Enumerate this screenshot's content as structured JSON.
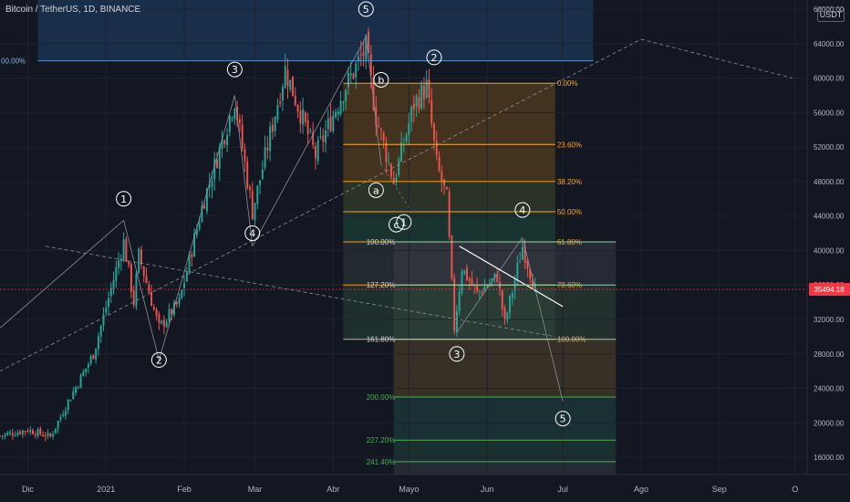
{
  "header": {
    "title": "Bitcoin / TetherUS, 1D, BINANCE",
    "currency": "USDT"
  },
  "colors": {
    "background": "#131722",
    "up": "#26a69a",
    "down": "#ef5350",
    "price_line": "#f23645",
    "fib_orange": "#f5a623",
    "fib_green": "#4caf50",
    "text": "#d1d4dc",
    "axis_text": "#b2b5be"
  },
  "chart_data": {
    "type": "candlestick",
    "symbol": "Bitcoin / TetherUS",
    "interval": "1D",
    "exchange": "BINANCE",
    "ylim": [
      14000,
      68000
    ],
    "y_ticks": [
      16000,
      20000,
      24000,
      28000,
      32000,
      36000,
      40000,
      44000,
      48000,
      52000,
      56000,
      60000,
      64000,
      68000
    ],
    "y_tick_labels": [
      "16000.00",
      "20000.00",
      "24000.00",
      "28000.00",
      "32000.00",
      "36000.00",
      "40000.00",
      "44000.00",
      "48000.00",
      "52000.00",
      "56000.00",
      "60000.00",
      "64000.00",
      "68000.00"
    ],
    "x_ticks": [
      {
        "label": "Dic",
        "date": "2020-12-01"
      },
      {
        "label": "2021",
        "date": "2021-01-01"
      },
      {
        "label": "Feb",
        "date": "2021-02-01"
      },
      {
        "label": "Mar",
        "date": "2021-03-01"
      },
      {
        "label": "Abr",
        "date": "2021-04-01"
      },
      {
        "label": "Mayo",
        "date": "2021-05-01"
      },
      {
        "label": "Jun",
        "date": "2021-06-01"
      },
      {
        "label": "Jul",
        "date": "2021-07-01"
      },
      {
        "label": "Ago",
        "date": "2021-08-01"
      },
      {
        "label": "Sep",
        "date": "2021-09-01"
      },
      {
        "label": "O",
        "date": "2021-10-01"
      }
    ],
    "last_price": {
      "value": 35494.18,
      "label": "35494.18"
    },
    "price_path": [
      [
        "2020-11-20",
        18500
      ],
      [
        "2020-12-01",
        19200
      ],
      [
        "2020-12-10",
        18400
      ],
      [
        "2020-12-17",
        22500
      ],
      [
        "2020-12-27",
        28000
      ],
      [
        "2021-01-08",
        41000
      ],
      [
        "2021-01-12",
        34000
      ],
      [
        "2021-01-14",
        39500
      ],
      [
        "2021-01-22",
        31000
      ],
      [
        "2021-01-30",
        34000
      ],
      [
        "2021-02-08",
        45000
      ],
      [
        "2021-02-21",
        57500
      ],
      [
        "2021-02-28",
        44500
      ],
      [
        "2021-03-13",
        61000
      ],
      [
        "2021-03-25",
        51000
      ],
      [
        "2021-04-05",
        58500
      ],
      [
        "2021-04-14",
        63500
      ],
      [
        "2021-04-18",
        55500
      ],
      [
        "2021-04-25",
        48000
      ],
      [
        "2021-05-03",
        57000
      ],
      [
        "2021-05-08",
        59000
      ],
      [
        "2021-05-12",
        50000
      ],
      [
        "2021-05-16",
        46000
      ],
      [
        "2021-05-19",
        31000
      ],
      [
        "2021-05-22",
        38000
      ],
      [
        "2021-05-28",
        35000
      ],
      [
        "2021-06-05",
        37000
      ],
      [
        "2021-06-08",
        31500
      ],
      [
        "2021-06-15",
        40500
      ],
      [
        "2021-06-20",
        35500
      ]
    ],
    "fib_retracement_upper": {
      "color": "#f5a623",
      "levels": [
        {
          "label": "0.00%",
          "value": 59400
        },
        {
          "label": "23.60%",
          "value": 52300
        },
        {
          "label": "38.20%",
          "value": 48000
        },
        {
          "label": "50.00%",
          "value": 44500
        },
        {
          "label": "61.80%",
          "value": 41000
        },
        {
          "label": "78.60%",
          "value": 36000
        },
        {
          "label": "100.00%",
          "value": 29700
        }
      ]
    },
    "fib_extension_lower": {
      "color": "#4caf50",
      "levels": [
        {
          "label": "100.00%",
          "value": 41000
        },
        {
          "label": "127.20%",
          "value": 36000
        },
        {
          "label": "161.80%",
          "value": 29700
        },
        {
          "label": "200.00%",
          "value": 23000
        },
        {
          "label": "227.20%",
          "value": 18000
        },
        {
          "label": "241.40%",
          "value": 15500
        }
      ]
    },
    "top_level": {
      "label": "00.00%",
      "value": 62000
    },
    "wave_labels": [
      {
        "label": "1",
        "date": "2021-01-08",
        "value": 46000
      },
      {
        "label": "2",
        "date": "2021-01-22",
        "value": 27300
      },
      {
        "label": "3",
        "date": "2021-02-21",
        "value": 61000
      },
      {
        "label": "4",
        "date": "2021-02-28",
        "value": 42000
      },
      {
        "label": "5",
        "date": "2021-04-14",
        "value": 68000
      },
      {
        "label": "a",
        "date": "2021-04-18",
        "value": 47000
      },
      {
        "label": "b",
        "date": "2021-04-20",
        "value": 59800
      },
      {
        "label": "c",
        "date": "2021-04-26",
        "value": 43000
      },
      {
        "label": "1",
        "date": "2021-04-29",
        "value": 43300
      },
      {
        "label": "2",
        "date": "2021-05-11",
        "value": 62400
      },
      {
        "label": "3",
        "date": "2021-05-20",
        "value": 28000
      },
      {
        "label": "4",
        "date": "2021-06-15",
        "value": 44700
      },
      {
        "label": "5",
        "date": "2021-07-01",
        "value": 20500
      }
    ]
  }
}
